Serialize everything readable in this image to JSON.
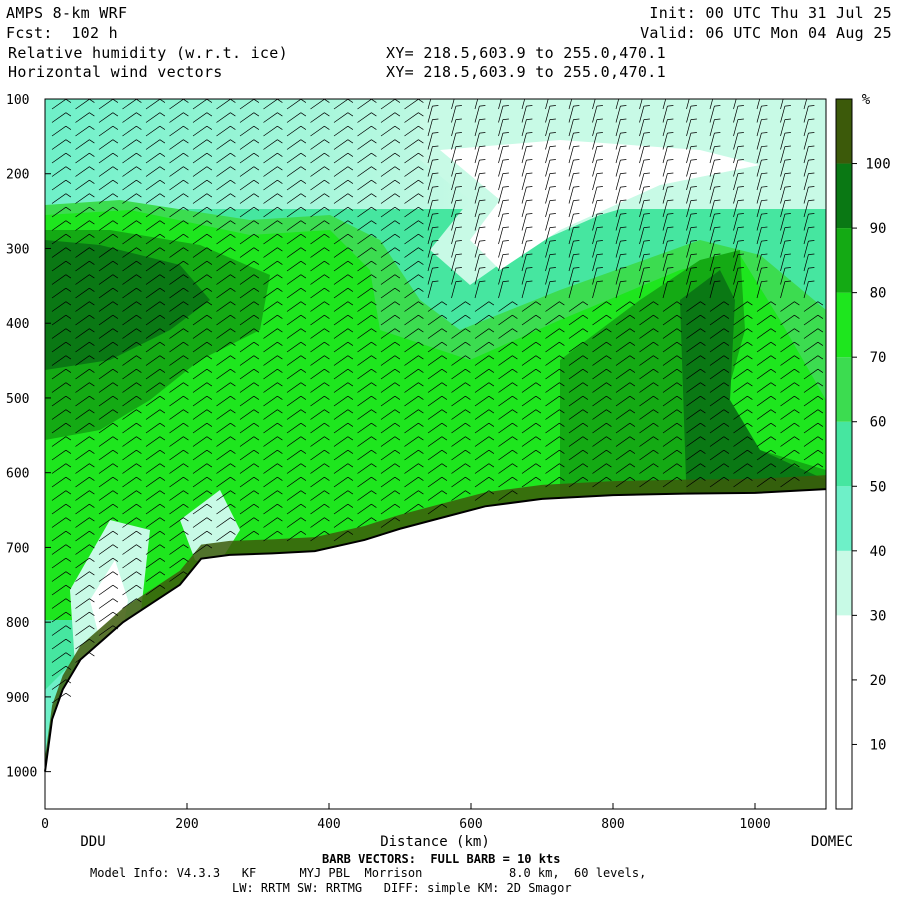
{
  "header": {
    "line1_left": "AMPS 8-km WRF",
    "line2_left": "Fcst:  102 h",
    "line3_left": "Relative humidity (w.r.t. ice)",
    "line4_left": "Horizontal wind vectors",
    "line3_mid": "XY= 218.5,603.9 to 255.0,470.1",
    "line4_mid": "XY= 218.5,603.9 to 255.0,470.1",
    "init": "Init: 00 UTC Thu 31 Jul 25",
    "valid": "Valid: 06 UTC Mon 04 Aug 25"
  },
  "chart_data": {
    "type": "heatmap",
    "title": "Relative humidity (w.r.t. ice)",
    "xlabel": "Distance (km)",
    "ylabel": "",
    "xlim": [
      0,
      1100
    ],
    "ylim": [
      1050,
      100
    ],
    "x_ticks": [
      0,
      200,
      400,
      600,
      800,
      1000
    ],
    "y_ticks": [
      100,
      200,
      300,
      400,
      500,
      600,
      700,
      800,
      900,
      1000
    ],
    "x_endpoints": {
      "left": "DDU",
      "right": "DOMEC"
    },
    "colorbar": {
      "unit": "%",
      "ticks": [
        10,
        20,
        30,
        40,
        50,
        60,
        70,
        80,
        90,
        100
      ],
      "bins": [
        {
          "range": "0-10",
          "color": "#ffffff"
        },
        {
          "range": "10-20",
          "color": "#ffffff"
        },
        {
          "range": "20-30",
          "color": "#ffffff"
        },
        {
          "range": "30-40",
          "color": "#c8fae6"
        },
        {
          "range": "40-50",
          "color": "#6ef0c8"
        },
        {
          "range": "50-60",
          "color": "#46e6a0"
        },
        {
          "range": "60-70",
          "color": "#3cdc50"
        },
        {
          "range": "70-80",
          "color": "#1ee61e"
        },
        {
          "range": "80-90",
          "color": "#14aa14"
        },
        {
          "range": "90-100",
          "color": "#0a7814"
        },
        {
          "range": ">100",
          "color": "#3c5a0a"
        }
      ]
    },
    "terrain_profile": [
      {
        "x": 0,
        "p": 1000
      },
      {
        "x": 10,
        "p": 930
      },
      {
        "x": 25,
        "p": 890
      },
      {
        "x": 50,
        "p": 850
      },
      {
        "x": 80,
        "p": 825
      },
      {
        "x": 110,
        "p": 800
      },
      {
        "x": 150,
        "p": 775
      },
      {
        "x": 190,
        "p": 750
      },
      {
        "x": 220,
        "p": 715
      },
      {
        "x": 260,
        "p": 710
      },
      {
        "x": 320,
        "p": 708
      },
      {
        "x": 380,
        "p": 705
      },
      {
        "x": 450,
        "p": 690
      },
      {
        "x": 500,
        "p": 675
      },
      {
        "x": 560,
        "p": 660
      },
      {
        "x": 620,
        "p": 645
      },
      {
        "x": 700,
        "p": 635
      },
      {
        "x": 800,
        "p": 630
      },
      {
        "x": 900,
        "p": 628
      },
      {
        "x": 1000,
        "p": 627
      },
      {
        "x": 1100,
        "p": 622
      }
    ]
  },
  "footer": {
    "barb_note": "BARB VECTORS:  FULL BARB = 10 kts",
    "model_info": "Model Info: V4.3.3   KF      MYJ PBL  Morrison            8.0 km,  60 levels,",
    "model_info2": "LW: RRTM SW: RRTMG   DIFF: simple KM: 2D Smagor"
  },
  "colors": {
    "background": "#ffffff",
    "axis": "#000000"
  }
}
